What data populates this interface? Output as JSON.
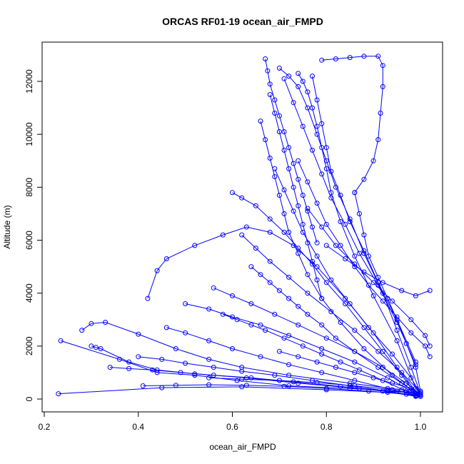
{
  "chart_data": {
    "type": "line",
    "title": "ORCAS RF01-19 ocean_air_FMPD",
    "xlabel": "ocean_air_FMPD",
    "ylabel": "Altitude (m)",
    "xlim": [
      0.2,
      1.05
    ],
    "ylim": [
      -100,
      13200
    ],
    "xticks": [
      0.2,
      0.4,
      0.6,
      0.8,
      1.0
    ],
    "xtick_labels": [
      "0.2",
      "0.4",
      "0.6",
      "0.8",
      "1.0"
    ],
    "yticks": [
      0,
      2000,
      4000,
      6000,
      8000,
      10000,
      12000
    ],
    "ytick_labels": [
      "0",
      "2000",
      "4000",
      "6000",
      "8000",
      "10000",
      "12000"
    ],
    "grid": false,
    "series_color": "#0000ff",
    "marker": "open-circle",
    "series": [
      {
        "x": [
          0.23,
          0.45,
          0.62,
          0.8,
          0.93,
          0.99,
          1.0
        ],
        "y": [
          200,
          430,
          460,
          350,
          250,
          150,
          100
        ]
      },
      {
        "x": [
          0.235,
          0.36,
          0.44,
          0.52,
          0.61,
          0.72,
          0.85,
          0.95,
          0.99
        ],
        "y": [
          2200,
          1500,
          1000,
          900,
          700,
          500,
          400,
          300,
          200
        ]
      },
      {
        "x": [
          0.28,
          0.3,
          0.33,
          0.4,
          0.48,
          0.55,
          0.62,
          0.72,
          0.85,
          0.96,
          0.995
        ],
        "y": [
          2600,
          2850,
          2900,
          2450,
          1900,
          1500,
          1200,
          900,
          600,
          350,
          200
        ]
      },
      {
        "x": [
          0.3,
          0.31,
          0.32,
          0.38,
          0.44,
          0.52,
          0.63,
          0.74,
          0.87,
          0.97
        ],
        "y": [
          2000,
          1950,
          1900,
          1400,
          1100,
          950,
          800,
          600,
          400,
          250
        ]
      },
      {
        "x": [
          0.42,
          0.44,
          0.46,
          0.52,
          0.58,
          0.63,
          0.68,
          0.73,
          0.78,
          0.84,
          0.9,
          0.95,
          0.99
        ],
        "y": [
          3800,
          4850,
          5300,
          5800,
          6200,
          6500,
          6300,
          5800,
          5000,
          3800,
          2500,
          1200,
          300
        ]
      },
      {
        "x": [
          0.6,
          0.62,
          0.65,
          0.68,
          0.71,
          0.74,
          0.77,
          0.8,
          0.84,
          0.88,
          0.92,
          0.96,
          0.99
        ],
        "y": [
          7800,
          7600,
          7300,
          6800,
          6300,
          5700,
          5100,
          4400,
          3600,
          2700,
          1800,
          900,
          200
        ]
      },
      {
        "x": [
          0.67,
          0.675,
          0.68,
          0.69,
          0.7,
          0.71,
          0.72,
          0.73,
          0.74,
          0.75,
          0.76,
          0.77,
          0.78
        ],
        "y": [
          12850,
          12400,
          11900,
          11300,
          10700,
          10100,
          9500,
          8900,
          8300,
          7700,
          7100,
          6500,
          5900
        ]
      },
      {
        "x": [
          0.7,
          0.72,
          0.74,
          0.76,
          0.78,
          0.8,
          0.82,
          0.85,
          0.88,
          0.92,
          0.95,
          0.98,
          1.0
        ],
        "y": [
          12500,
          12200,
          11800,
          11000,
          10000,
          9000,
          8000,
          6800,
          5500,
          4000,
          2600,
          1200,
          200
        ]
      },
      {
        "x": [
          0.74,
          0.75,
          0.76,
          0.77,
          0.78,
          0.79,
          0.8,
          0.81,
          0.83,
          0.86,
          0.9,
          0.95,
          0.99
        ],
        "y": [
          12300,
          12000,
          11600,
          11000,
          10300,
          9500,
          8700,
          7800,
          6700,
          5400,
          3900,
          2200,
          400
        ]
      },
      {
        "x": [
          0.68,
          0.69,
          0.7,
          0.71,
          0.72,
          0.73,
          0.74,
          0.75,
          0.76,
          0.77,
          0.78,
          0.79
        ],
        "y": [
          11500,
          10800,
          10100,
          9400,
          8700,
          8000,
          7300,
          6600,
          5900,
          5200,
          4500,
          3800
        ]
      },
      {
        "x": [
          0.66,
          0.67,
          0.68,
          0.69,
          0.7,
          0.71,
          0.72,
          0.74,
          0.76,
          0.79,
          0.83,
          0.88,
          0.94,
          0.99
        ],
        "y": [
          10500,
          9800,
          9100,
          8400,
          7700,
          7000,
          6300,
          5500,
          4700,
          3800,
          2900,
          1900,
          900,
          200
        ]
      },
      {
        "x": [
          0.79,
          0.82,
          0.85,
          0.88,
          0.91,
          0.92,
          0.92,
          0.915,
          0.91,
          0.9,
          0.88,
          0.86
        ],
        "y": [
          12800,
          12850,
          12900,
          12950,
          12950,
          12600,
          11800,
          10800,
          9800,
          9000,
          8300,
          7800
        ]
      },
      {
        "x": [
          0.86,
          0.87,
          0.88,
          0.89,
          0.91,
          0.93,
          0.95,
          0.97,
          0.99,
          1.0
        ],
        "y": [
          7800,
          7000,
          6200,
          5400,
          4600,
          3800,
          3000,
          2100,
          1200,
          300
        ]
      },
      {
        "x": [
          0.64,
          0.66,
          0.68,
          0.7,
          0.72,
          0.74,
          0.76,
          0.79,
          0.82,
          0.86,
          0.91,
          0.96,
          1.0
        ],
        "y": [
          5000,
          4700,
          4400,
          4100,
          3800,
          3500,
          3200,
          2800,
          2300,
          1800,
          1200,
          600,
          150
        ]
      },
      {
        "x": [
          0.58,
          0.61,
          0.64,
          0.67,
          0.71,
          0.75,
          0.79,
          0.83,
          0.87,
          0.92,
          0.97,
          1.0
        ],
        "y": [
          3200,
          3000,
          2800,
          2600,
          2300,
          2000,
          1700,
          1400,
          1100,
          700,
          300,
          100
        ]
      },
      {
        "x": [
          0.46,
          0.5,
          0.55,
          0.6,
          0.66,
          0.72,
          0.79,
          0.86,
          0.93,
          0.99
        ],
        "y": [
          2700,
          2500,
          2200,
          1900,
          1600,
          1300,
          1000,
          700,
          400,
          150
        ]
      },
      {
        "x": [
          0.4,
          0.45,
          0.5,
          0.56,
          0.62,
          0.69,
          0.77,
          0.85,
          0.93,
          0.99
        ],
        "y": [
          1600,
          1500,
          1350,
          1200,
          1050,
          900,
          700,
          500,
          300,
          120
        ]
      },
      {
        "x": [
          0.34,
          0.38,
          0.43,
          0.49,
          0.56,
          0.64,
          0.73,
          0.83,
          0.92,
          0.99
        ],
        "y": [
          1200,
          1150,
          1100,
          1000,
          900,
          800,
          650,
          480,
          300,
          100
        ]
      },
      {
        "x": [
          0.41,
          0.48,
          0.55,
          0.63,
          0.71,
          0.8,
          0.89,
          0.97,
          1.0
        ],
        "y": [
          500,
          520,
          540,
          520,
          480,
          400,
          300,
          180,
          100
        ]
      },
      {
        "x": [
          0.74,
          0.76,
          0.78,
          0.8,
          0.83,
          0.86,
          0.89,
          0.92,
          0.95,
          0.98,
          1.01,
          1.02
        ],
        "y": [
          9000,
          8200,
          7400,
          6600,
          5800,
          5000,
          4300,
          3700,
          3100,
          2500,
          2000,
          1600
        ]
      },
      {
        "x": [
          0.76,
          0.79,
          0.82,
          0.86,
          0.9,
          0.94,
          0.98,
          1.01,
          1.02
        ],
        "y": [
          7200,
          6500,
          5800,
          5100,
          4400,
          3700,
          3000,
          2400,
          2000
        ]
      },
      {
        "x": [
          0.8,
          0.84,
          0.88,
          0.92,
          0.96,
          0.99,
          1.02
        ],
        "y": [
          5800,
          5300,
          4800,
          4400,
          4100,
          3900,
          4100
        ]
      },
      {
        "x": [
          0.69,
          0.71,
          0.73,
          0.75,
          0.78,
          0.81,
          0.85,
          0.89,
          0.94,
          0.98,
          1.0
        ],
        "y": [
          8700,
          7900,
          7100,
          6300,
          5400,
          4500,
          3600,
          2700,
          1700,
          800,
          200
        ]
      },
      {
        "x": [
          0.62,
          0.65,
          0.68,
          0.72,
          0.76,
          0.81,
          0.86,
          0.91,
          0.96,
          1.0
        ],
        "y": [
          6200,
          5700,
          5200,
          4600,
          4000,
          3300,
          2600,
          1800,
          1000,
          250
        ]
      },
      {
        "x": [
          0.56,
          0.6,
          0.64,
          0.69,
          0.74,
          0.8,
          0.86,
          0.92,
          0.97,
          1.0
        ],
        "y": [
          4200,
          3900,
          3600,
          3200,
          2800,
          2300,
          1800,
          1200,
          600,
          150
        ]
      },
      {
        "x": [
          0.5,
          0.55,
          0.6,
          0.66,
          0.72,
          0.79,
          0.86,
          0.93,
          0.99
        ],
        "y": [
          3600,
          3400,
          3100,
          2800,
          2400,
          1900,
          1400,
          800,
          200
        ]
      },
      {
        "x": [
          0.71,
          0.73,
          0.75,
          0.77,
          0.79,
          0.81,
          0.84,
          0.87,
          0.91,
          0.95,
          0.99
        ],
        "y": [
          12100,
          11200,
          10300,
          9400,
          8500,
          7600,
          6600,
          5500,
          4300,
          2900,
          1300
        ]
      },
      {
        "x": [
          0.77,
          0.78,
          0.79,
          0.8,
          0.81,
          0.83,
          0.85,
          0.88,
          0.91,
          0.95,
          0.99
        ],
        "y": [
          12200,
          11300,
          10400,
          9500,
          8600,
          7700,
          6700,
          5600,
          4400,
          3000,
          1400
        ]
      },
      {
        "x": [
          0.7,
          0.74,
          0.78,
          0.82,
          0.86,
          0.9,
          0.94,
          0.98,
          1.0
        ],
        "y": [
          1800,
          1600,
          1400,
          1200,
          1000,
          800,
          600,
          400,
          200
        ]
      },
      {
        "x": [
          0.55,
          0.62,
          0.7,
          0.78,
          0.86,
          0.94,
          0.99
        ],
        "y": [
          800,
          750,
          700,
          620,
          500,
          350,
          200
        ]
      }
    ]
  }
}
